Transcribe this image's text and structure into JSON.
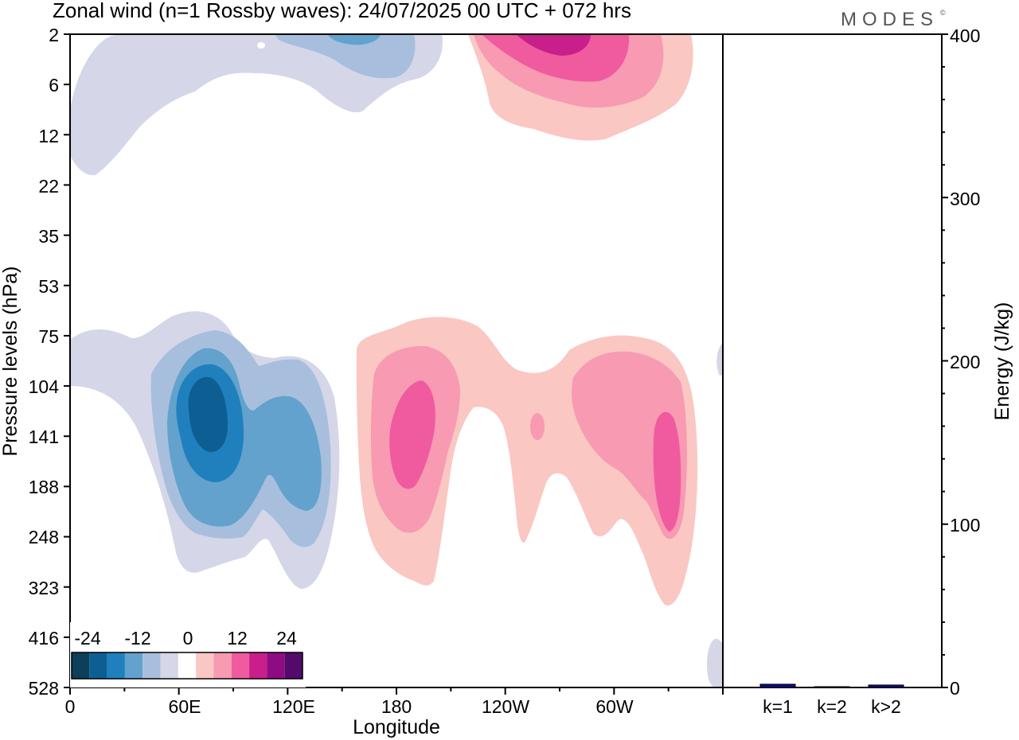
{
  "title": "Zonal wind (n=1 Rossby waves):  24/07/2025  00 UTC  + 072 hrs",
  "brand": "MODES",
  "brand_mark": "©",
  "chart_data": [
    {
      "type": "heatmap",
      "subtype": "filled-contour longitude-pressure cross-section",
      "title": "Zonal wind (n=1 Rossby waves):  24/07/2025  00 UTC  + 072 hrs",
      "xlabel": "Longitude",
      "ylabel": "Pressure levels (hPa)",
      "x_ticks": [
        "0",
        "60E",
        "120E",
        "180",
        "120W",
        "60W"
      ],
      "x_tick_values": [
        0,
        60,
        120,
        180,
        240,
        300
      ],
      "xlim": [
        0,
        360
      ],
      "y_ticks": [
        "2",
        "6",
        "12",
        "22",
        "35",
        "53",
        "75",
        "104",
        "141",
        "188",
        "248",
        "323",
        "416",
        "528"
      ],
      "colorbar": {
        "labels": [
          "-24",
          "-12",
          "0",
          "12",
          "24"
        ],
        "colors": [
          "#0d3e5a",
          "#0d5f93",
          "#1f80bd",
          "#62a2cd",
          "#a7bfdd",
          "#d5d6e8",
          "#ffffff",
          "#fac7c3",
          "#f79ab2",
          "#ef5b9e",
          "#c91f8a",
          "#8e0b84",
          "#530a6b"
        ]
      },
      "features": [
        {
          "name": "upper-stratosphere easterly anomaly",
          "center_lon": 150,
          "center_level_hPa": 2,
          "peak": -12
        },
        {
          "name": "upper-stratosphere westerly anomaly",
          "center_lon": 268,
          "center_level_hPa": 2,
          "peak": 18
        },
        {
          "name": "upper-troposphere easterly core",
          "center_lon": 70,
          "center_level_hPa": 125,
          "peak": -21
        },
        {
          "name": "secondary easterly core",
          "center_lon": 113,
          "center_level_hPa": 160,
          "peak": -12
        },
        {
          "name": "westerly core near dateline",
          "center_lon": 182,
          "center_level_hPa": 150,
          "peak": 12
        },
        {
          "name": "westerly core near 60W",
          "center_lon": 315,
          "center_level_hPa": 180,
          "peak": 12
        }
      ]
    },
    {
      "type": "bar",
      "ylabel": "Energy (J/kg)",
      "categories": [
        "k=1",
        "k=2",
        "k>2"
      ],
      "values": [
        2,
        0.5,
        1.5
      ],
      "ylim": [
        0,
        400
      ],
      "y_ticks": [
        "0",
        "100",
        "200",
        "300",
        "400"
      ],
      "bar_color": "#0b0b8c"
    }
  ]
}
